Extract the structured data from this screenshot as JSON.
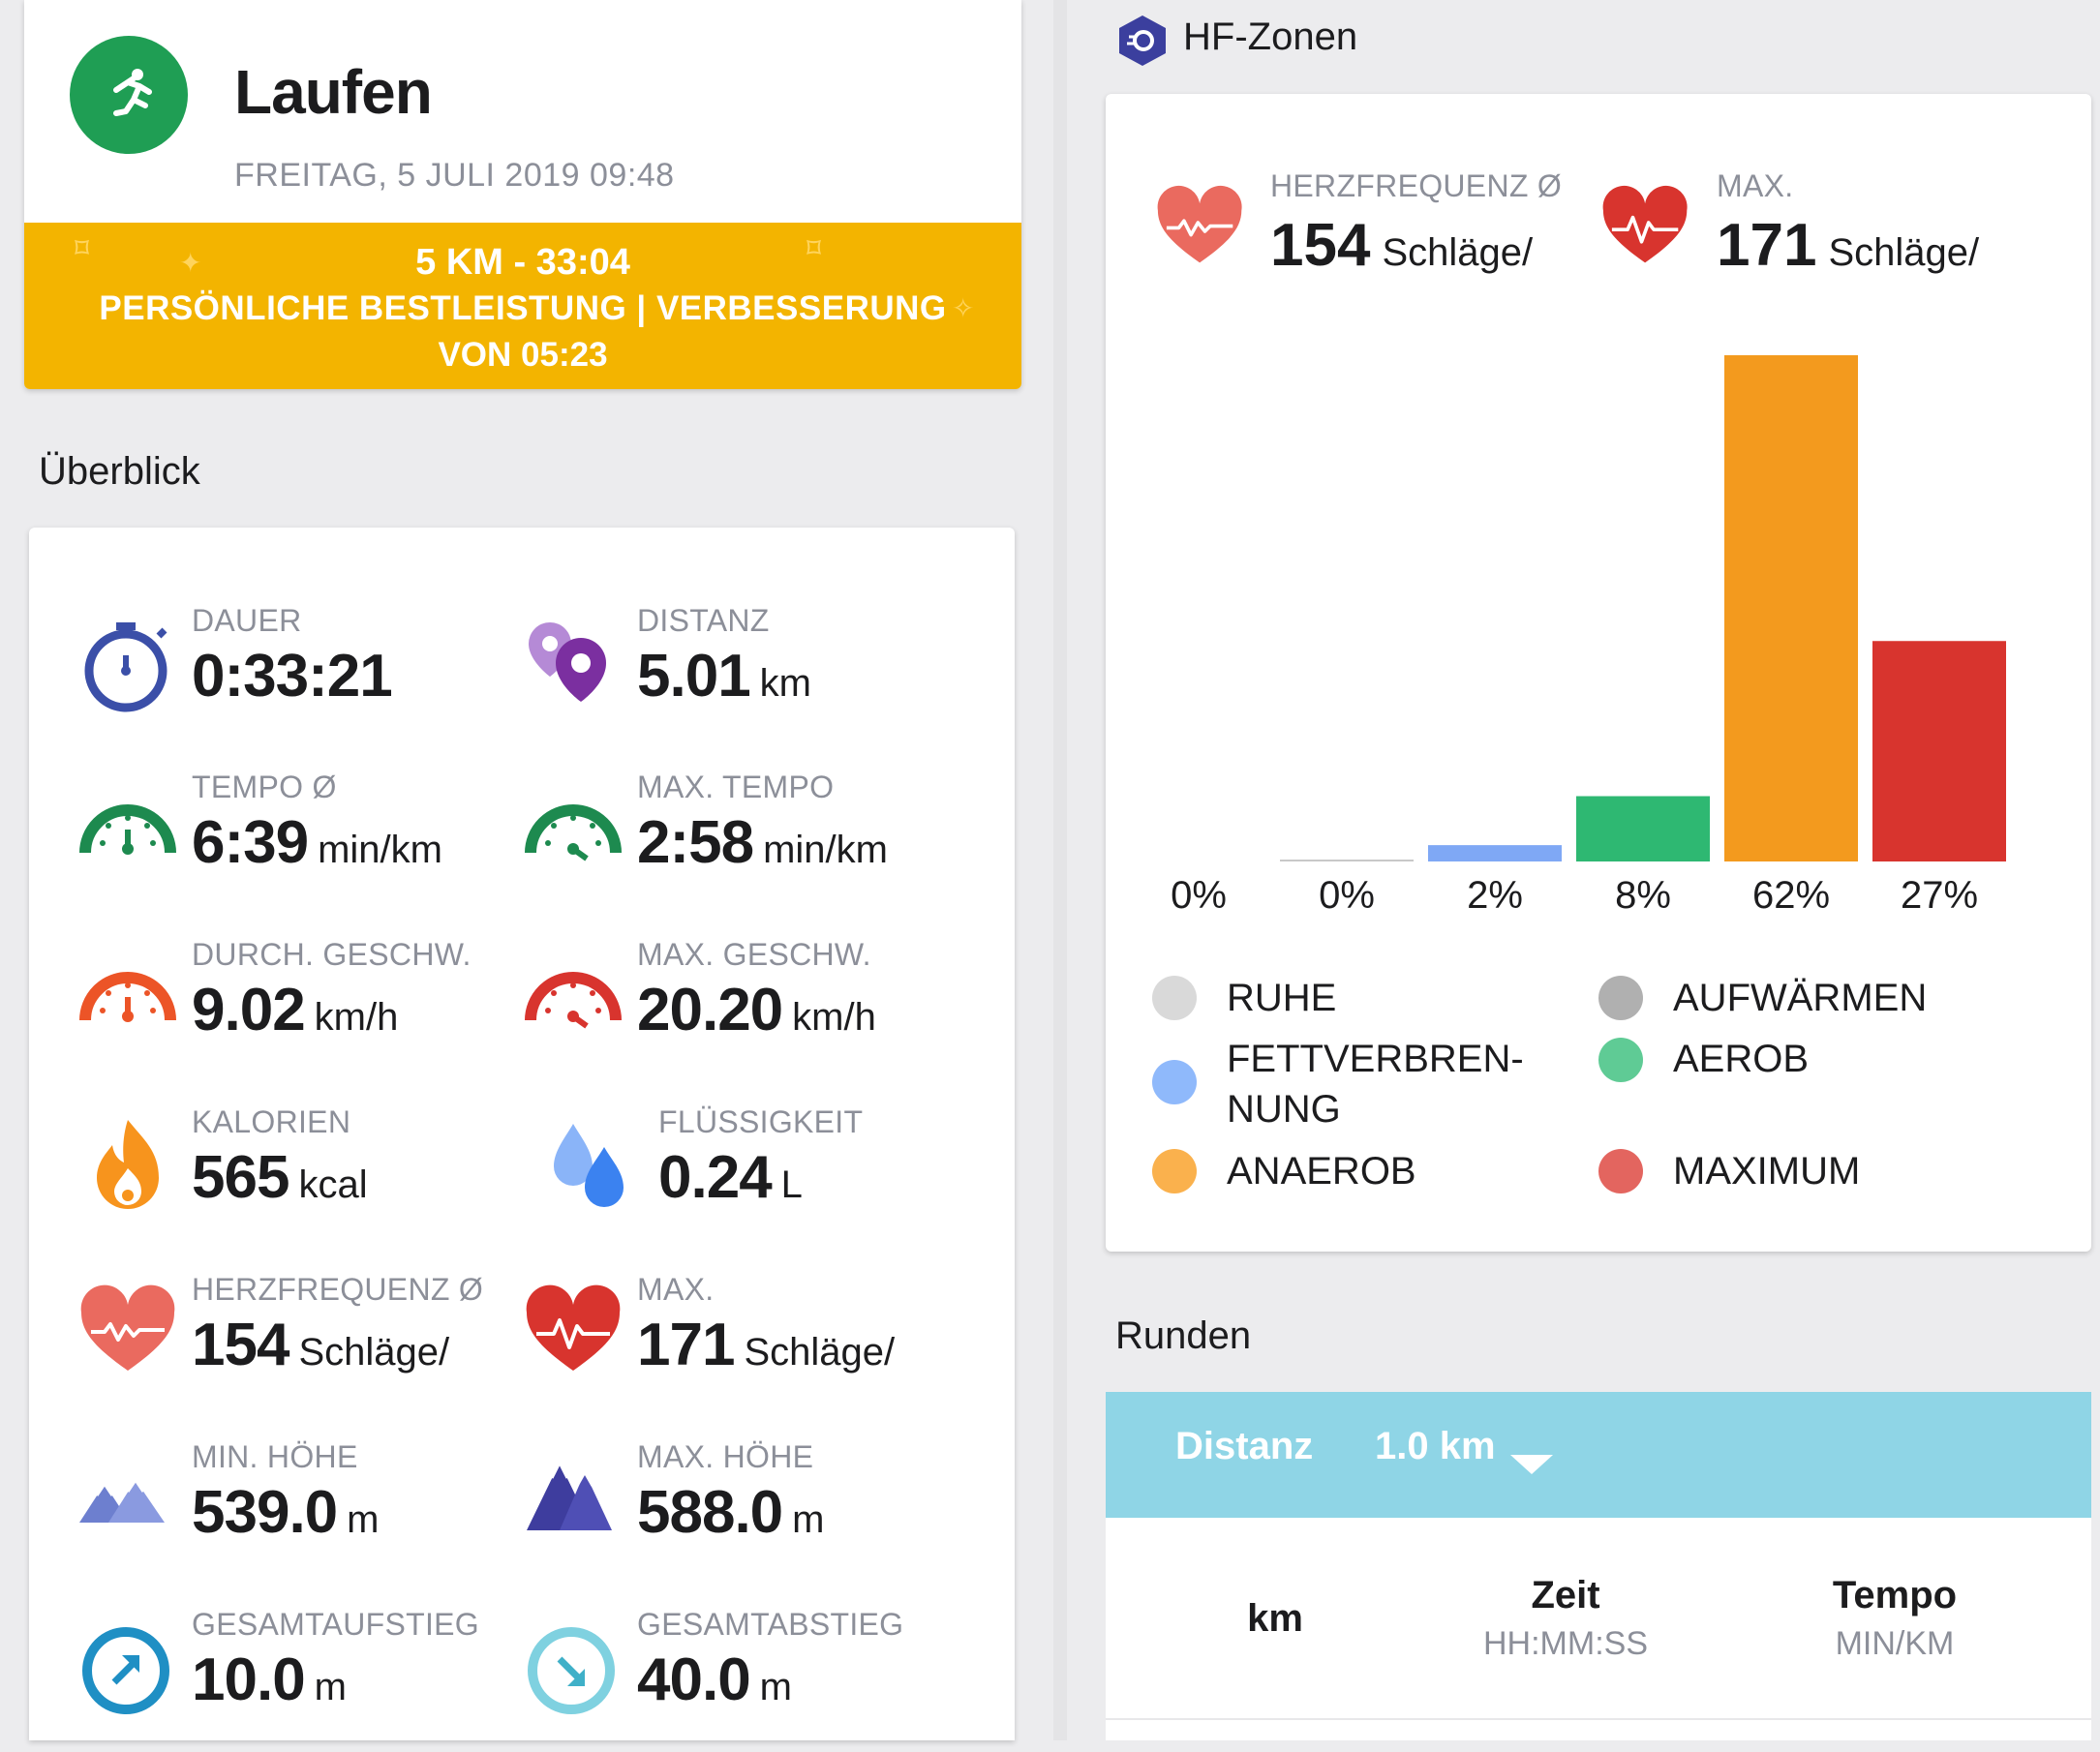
{
  "activity": {
    "title": "Laufen",
    "date": "FREITAG, 5 JULI 2019 09:48",
    "icon": "running-icon",
    "color": "#1f9e54"
  },
  "personal_best": {
    "line1": "5 KM  -  33:04",
    "line2": "PERSÖNLICHE BESTLEISTUNG  |  VERBESSERUNG",
    "line3": "VON 05:23",
    "color": "#f3b400"
  },
  "overview": {
    "title": "Überblick",
    "metrics": [
      {
        "label": "DAUER",
        "value": "0:33:21",
        "unit": "",
        "icon": "stopwatch-icon"
      },
      {
        "label": "DISTANZ",
        "value": "5.01",
        "unit": "km",
        "icon": "map-pins-icon"
      },
      {
        "label": "TEMPO Ø",
        "value": "6:39",
        "unit": "min/km",
        "icon": "pace-gauge-icon"
      },
      {
        "label": "MAX. TEMPO",
        "value": "2:58",
        "unit": "min/km",
        "icon": "max-pace-gauge-icon"
      },
      {
        "label": "DURCH. GESCHW.",
        "value": "9.02",
        "unit": "km/h",
        "icon": "speed-gauge-icon"
      },
      {
        "label": "MAX. GESCHW.",
        "value": "20.20",
        "unit": "km/h",
        "icon": "max-speed-gauge-icon"
      },
      {
        "label": "KALORIEN",
        "value": "565",
        "unit": "kcal",
        "icon": "flame-icon"
      },
      {
        "label": "FLÜSSIGKEIT",
        "value": "0.24",
        "unit": "L",
        "icon": "water-drops-icon"
      },
      {
        "label": "HERZFREQUENZ Ø",
        "value": "154",
        "unit": "Schläge/",
        "icon": "heart-pulse-icon"
      },
      {
        "label": "MAX.",
        "value": "171",
        "unit": "Schläge/",
        "icon": "heart-max-icon"
      },
      {
        "label": "MIN. HÖHE",
        "value": "539.0",
        "unit": "m",
        "icon": "mountain-low-icon"
      },
      {
        "label": "MAX. HÖHE",
        "value": "588.0",
        "unit": "m",
        "icon": "mountain-high-icon"
      },
      {
        "label": "GESAMTAUFSTIEG",
        "value": "10.0",
        "unit": "m",
        "icon": "ascent-arrow-icon"
      },
      {
        "label": "GESAMTABSTIEG",
        "value": "40.0",
        "unit": "m",
        "icon": "descent-arrow-icon"
      }
    ]
  },
  "hf_zones": {
    "title": "HF-Zonen",
    "avg": {
      "label": "HERZFREQUENZ Ø",
      "value": "154",
      "unit": "Schläge/"
    },
    "max": {
      "label": "MAX.",
      "value": "171",
      "unit": "Schläge/"
    },
    "legend": [
      {
        "name": "RUHE",
        "color": "#d9d9d9"
      },
      {
        "name": "AUFWÄRMEN",
        "color": "#b0b0b0"
      },
      {
        "name": "FETTVERBREN-",
        "name2": "NUNG",
        "color": "#8fb9fb"
      },
      {
        "name": "AEROB",
        "color": "#5fcb95"
      },
      {
        "name": "ANAEROB",
        "color": "#fab14d"
      },
      {
        "name": "MAXIMUM",
        "color": "#e3655f"
      }
    ]
  },
  "chart_data": {
    "type": "bar",
    "title": "HF-Zonen",
    "categories": [
      "RUHE",
      "AUFWÄRMEN",
      "FETTVERBRENNUNG",
      "AEROB",
      "ANAEROB",
      "MAXIMUM"
    ],
    "values": [
      0,
      0,
      2,
      8,
      62,
      27
    ],
    "labels": [
      "0%",
      "0%",
      "2%",
      "8%",
      "62%",
      "27%"
    ],
    "colors": [
      "#d9d9d9",
      "#c8c8c8",
      "#7fa8f5",
      "#2eb872",
      "#f39a1e",
      "#d8342e"
    ],
    "ylim": [
      0,
      62
    ],
    "xlabel": "",
    "ylabel": ""
  },
  "laps": {
    "title": "Runden",
    "filter_label": "Distanz",
    "filter_value": "1.0 km",
    "columns": [
      {
        "title": "km",
        "sub": ""
      },
      {
        "title": "Zeit",
        "sub": "HH:MM:SS"
      },
      {
        "title": "Tempo",
        "sub": "MIN/KM"
      }
    ]
  }
}
